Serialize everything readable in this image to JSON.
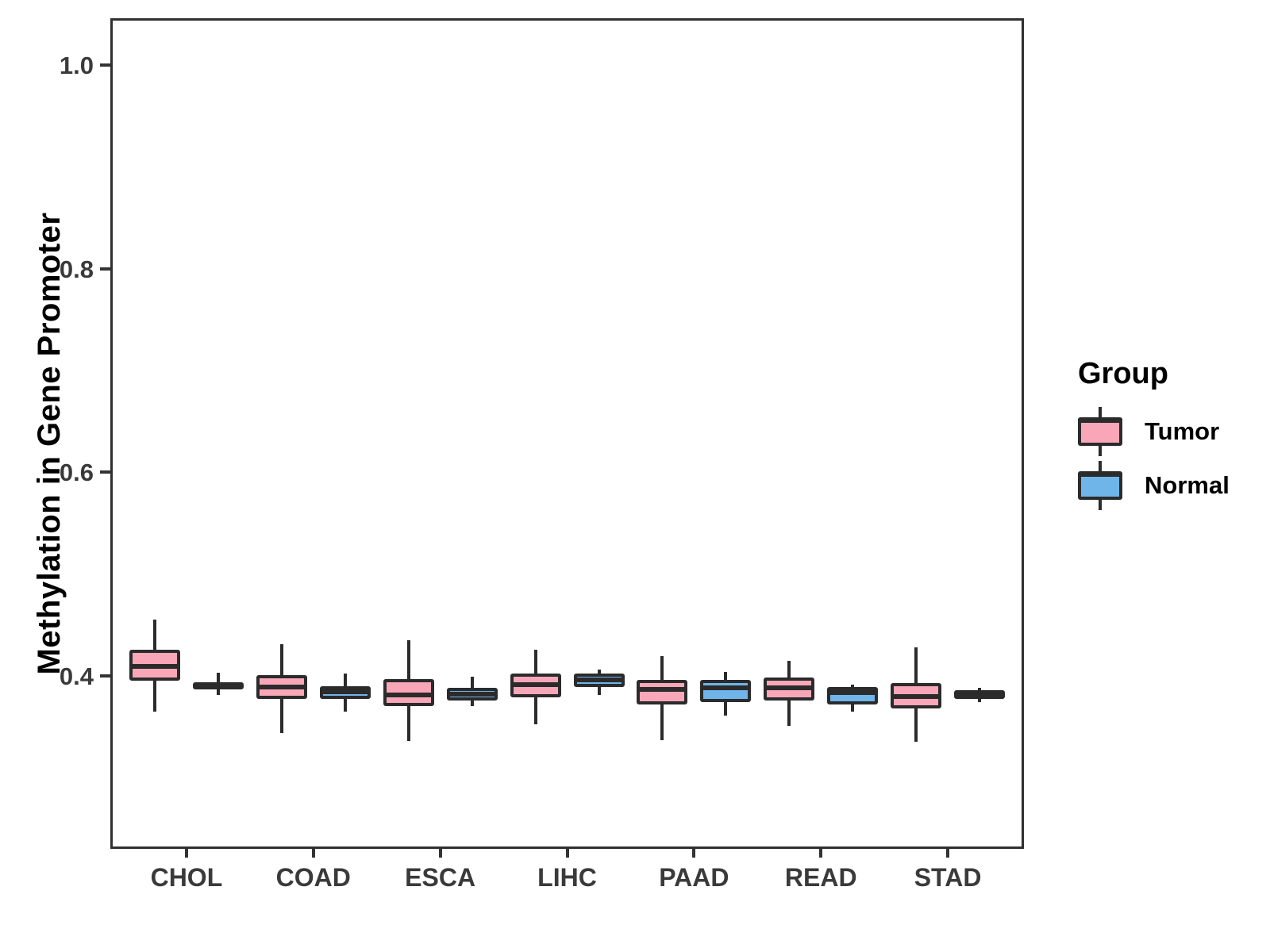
{
  "chart_data": {
    "type": "boxplot",
    "title": "",
    "ylabel": "Methylation in Gene Promoter",
    "xlabel": "",
    "categories": [
      "CHOL",
      "COAD",
      "ESCA",
      "LIHC",
      "PAAD",
      "READ",
      "STAD"
    ],
    "y_ticks": [
      "0.4",
      "0.6",
      "0.8",
      "1.0"
    ],
    "y_tick_values": [
      0.4,
      0.6,
      0.8,
      1.0
    ],
    "ylim": [
      0.23,
      1.046
    ],
    "grid": false,
    "legend": {
      "title": "Group",
      "position": "right"
    },
    "colors": {
      "tumor_fill": "#F9A7B8",
      "normal_fill": "#6FB5EA",
      "box_border": "#2B2B2B",
      "axis_text": "#3A3A3A",
      "axis_line": "#333333",
      "title_text": "#000000"
    },
    "series": [
      {
        "name": "Tumor",
        "fill": "#F9A7B8",
        "boxes": [
          {
            "category": "CHOL",
            "whisker_low": 0.365,
            "q1": 0.395,
            "median": 0.409,
            "q3": 0.426,
            "whisker_high": 0.455
          },
          {
            "category": "COAD",
            "whisker_low": 0.344,
            "q1": 0.377,
            "median": 0.389,
            "q3": 0.401,
            "whisker_high": 0.431
          },
          {
            "category": "ESCA",
            "whisker_low": 0.336,
            "q1": 0.37,
            "median": 0.381,
            "q3": 0.397,
            "whisker_high": 0.435
          },
          {
            "category": "LIHC",
            "whisker_low": 0.352,
            "q1": 0.379,
            "median": 0.391,
            "q3": 0.402,
            "whisker_high": 0.426
          },
          {
            "category": "PAAD",
            "whisker_low": 0.337,
            "q1": 0.372,
            "median": 0.387,
            "q3": 0.396,
            "whisker_high": 0.419
          },
          {
            "category": "READ",
            "whisker_low": 0.351,
            "q1": 0.376,
            "median": 0.388,
            "q3": 0.398,
            "whisker_high": 0.415
          },
          {
            "category": "STAD",
            "whisker_low": 0.335,
            "q1": 0.368,
            "median": 0.38,
            "q3": 0.393,
            "whisker_high": 0.428
          }
        ]
      },
      {
        "name": "Normal",
        "fill": "#6FB5EA",
        "boxes": [
          {
            "category": "CHOL",
            "whisker_low": 0.381,
            "q1": 0.387,
            "median": 0.391,
            "q3": 0.394,
            "whisker_high": 0.403
          },
          {
            "category": "COAD",
            "whisker_low": 0.365,
            "q1": 0.377,
            "median": 0.384,
            "q3": 0.39,
            "whisker_high": 0.402
          },
          {
            "category": "ESCA",
            "whisker_low": 0.37,
            "q1": 0.376,
            "median": 0.382,
            "q3": 0.388,
            "whisker_high": 0.399
          },
          {
            "category": "LIHC",
            "whisker_low": 0.381,
            "q1": 0.389,
            "median": 0.396,
            "q3": 0.402,
            "whisker_high": 0.406
          },
          {
            "category": "PAAD",
            "whisker_low": 0.361,
            "q1": 0.374,
            "median": 0.388,
            "q3": 0.396,
            "whisker_high": 0.404
          },
          {
            "category": "READ",
            "whisker_low": 0.365,
            "q1": 0.372,
            "median": 0.384,
            "q3": 0.389,
            "whisker_high": 0.391
          },
          {
            "category": "STAD",
            "whisker_low": 0.374,
            "q1": 0.377,
            "median": 0.382,
            "q3": 0.386,
            "whisker_high": 0.388
          }
        ]
      }
    ]
  }
}
